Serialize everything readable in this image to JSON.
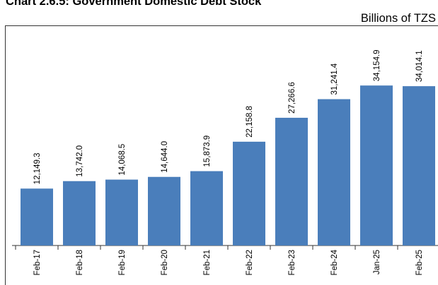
{
  "chart_data": {
    "type": "bar",
    "title": "Chart 2.6.5: Government Domestic Debt Stock",
    "units": "Billions of TZS",
    "categories": [
      "Feb-17",
      "Feb-18",
      "Feb-19",
      "Feb-20",
      "Feb-21",
      "Feb-22",
      "Feb-23",
      "Feb-24",
      "Jan-25",
      "Feb-25"
    ],
    "values": [
      12149.3,
      13742.0,
      14068.5,
      14644.0,
      15873.9,
      22158.8,
      27266.6,
      31241.4,
      34154.9,
      34014.1
    ],
    "value_labels": [
      "12,149.3",
      "13,742.0",
      "14,068.5",
      "14,644.0",
      "15,873.9",
      "22,158.8",
      "27,266.6",
      "31,241.4",
      "34,154.9",
      "34,014.1"
    ],
    "ylim": [
      0,
      40000
    ],
    "grid": false,
    "bar_color": "#4a7ebb"
  }
}
